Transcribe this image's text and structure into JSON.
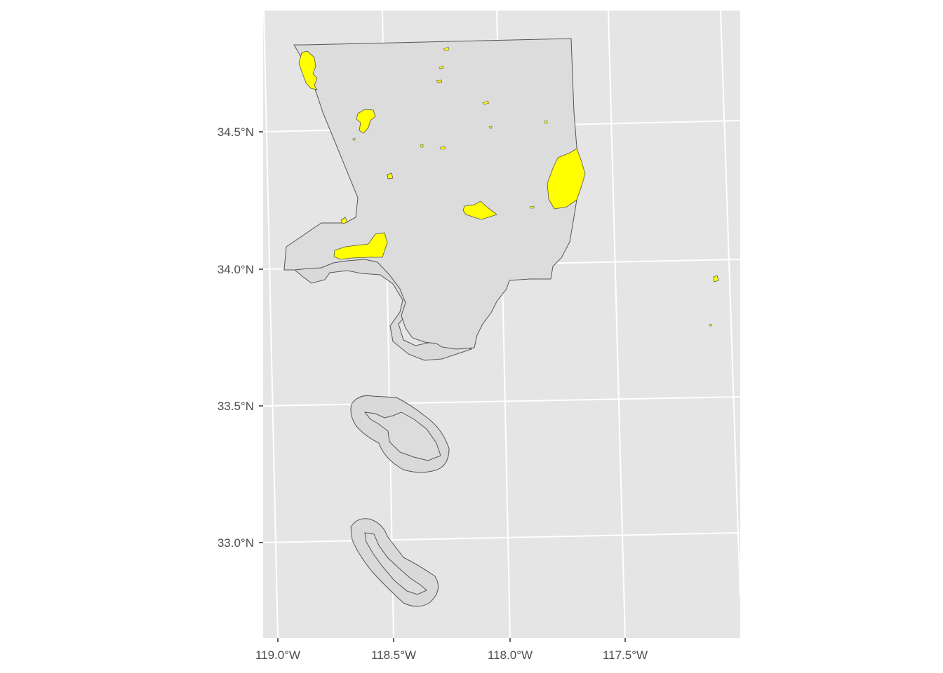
{
  "map": {
    "colors": {
      "panel_background": "#e5e5e5",
      "gridline": "#ffffff",
      "land_fill": "#dcdcdc",
      "buffer_fill": "#d9d9d9",
      "outline": "#555555",
      "highlight_fill": "#ffff00",
      "tick_text": "#4d4d4d"
    },
    "y_axis": {
      "labels": [
        "34.5°N",
        "34.0°N",
        "33.5°N",
        "33.0°N"
      ],
      "values": [
        34.5,
        34.0,
        33.5,
        33.0
      ]
    },
    "x_axis": {
      "labels": [
        "119.0°W",
        "118.5°W",
        "118.0°W",
        "117.5°W"
      ],
      "values": [
        -119.0,
        -118.5,
        -118.0,
        -117.5
      ]
    },
    "layers": [
      "county boundary with coastal buffer",
      "island buffers",
      "highlighted areas (yellow)"
    ]
  }
}
